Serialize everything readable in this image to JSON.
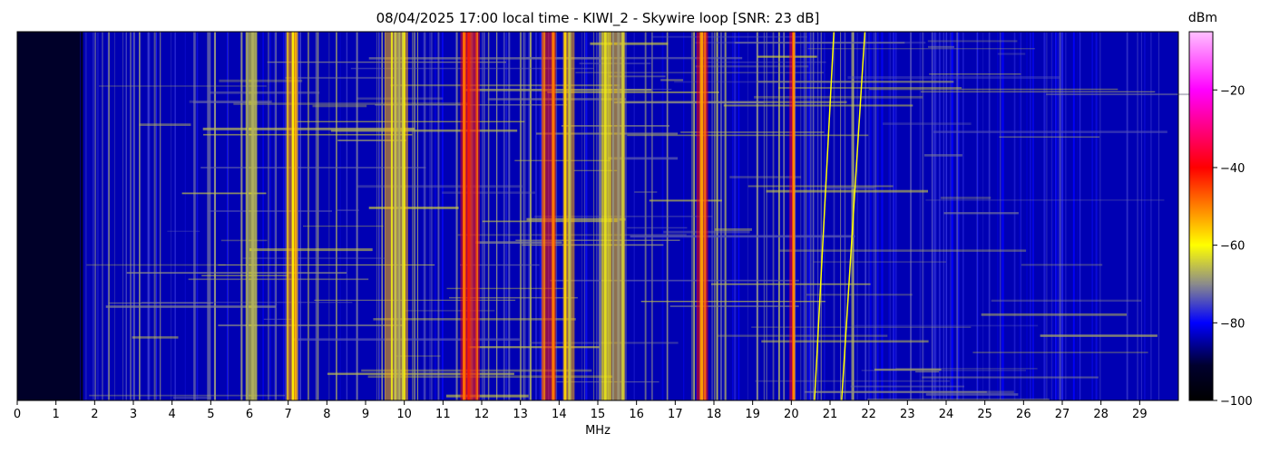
{
  "chart_data": {
    "type": "heatmap",
    "title": "08/04/2025 17:00 local time - KIWI_2 - Skywire loop [SNR: 23 dB]",
    "xlabel": "MHz",
    "ylabel": "",
    "xlim": [
      0,
      30
    ],
    "x_ticks": [
      "0",
      "1",
      "2",
      "3",
      "4",
      "5",
      "6",
      "7",
      "8",
      "9",
      "10",
      "11",
      "12",
      "13",
      "14",
      "15",
      "16",
      "17",
      "18",
      "19",
      "20",
      "21",
      "22",
      "23",
      "24",
      "25",
      "26",
      "27",
      "28",
      "29"
    ],
    "colorbar": {
      "label": "dBm",
      "range": [
        -100,
        -5
      ],
      "ticks": [
        "−100",
        "−80",
        "−60",
        "−40",
        "−20"
      ],
      "tick_values": [
        -100,
        -80,
        -60,
        -40,
        -20
      ],
      "colormap": [
        {
          "value": -100,
          "color": "#000000"
        },
        {
          "value": -91,
          "color": "#00002e"
        },
        {
          "value": -80,
          "color": "#0000ff"
        },
        {
          "value": -70,
          "color": "#8b8b8b"
        },
        {
          "value": -60,
          "color": "#ffff00"
        },
        {
          "value": -40,
          "color": "#ff0000"
        },
        {
          "value": -20,
          "color": "#ff00ff"
        },
        {
          "value": -5,
          "color": "#ffc0ff"
        }
      ]
    },
    "background_level_dbm": -84,
    "low_band_level_dbm": -92,
    "signal_bands": [
      {
        "from_mhz": 11.45,
        "to_mhz": 11.95,
        "level_dbm": -48
      },
      {
        "from_mhz": 13.55,
        "to_mhz": 13.9,
        "level_dbm": -50
      },
      {
        "from_mhz": 17.55,
        "to_mhz": 17.85,
        "level_dbm": -48
      },
      {
        "from_mhz": 9.5,
        "to_mhz": 10.1,
        "level_dbm": -62
      },
      {
        "from_mhz": 6.95,
        "to_mhz": 7.25,
        "level_dbm": -60
      },
      {
        "from_mhz": 5.9,
        "to_mhz": 6.2,
        "level_dbm": -68
      },
      {
        "from_mhz": 15.1,
        "to_mhz": 15.7,
        "level_dbm": -64
      },
      {
        "from_mhz": 14.1,
        "to_mhz": 14.4,
        "level_dbm": -62
      },
      {
        "from_mhz": 19.95,
        "to_mhz": 20.05,
        "level_dbm": -45
      }
    ]
  }
}
